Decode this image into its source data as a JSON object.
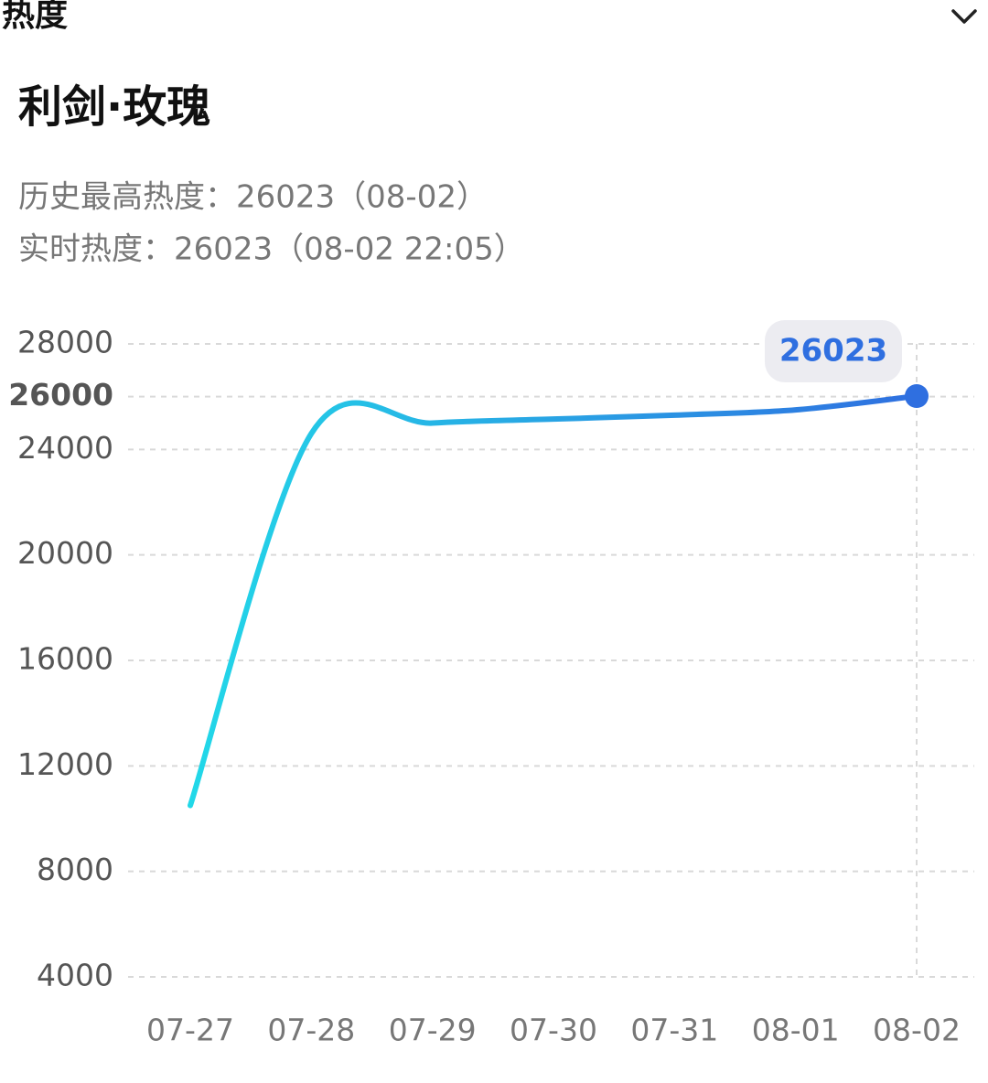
{
  "header": {
    "section": "热度",
    "title": "利剑·玫瑰",
    "peak": "历史最高热度：26023（08-02）",
    "realtime": "实时热度：26023（08-02 22:05）"
  },
  "chart_data": {
    "type": "line",
    "categories": [
      "07-27",
      "07-28",
      "07-29",
      "07-30",
      "07-31",
      "08-01",
      "08-02"
    ],
    "values": [
      10500,
      24600,
      25000,
      25150,
      25300,
      25500,
      26023
    ],
    "colors": [
      "#22d8e8",
      "#2f6fe0"
    ],
    "ylim": [
      4000,
      28000
    ],
    "yticks": [
      4000,
      8000,
      12000,
      16000,
      20000,
      24000,
      26000,
      28000
    ],
    "grid": true
  }
}
